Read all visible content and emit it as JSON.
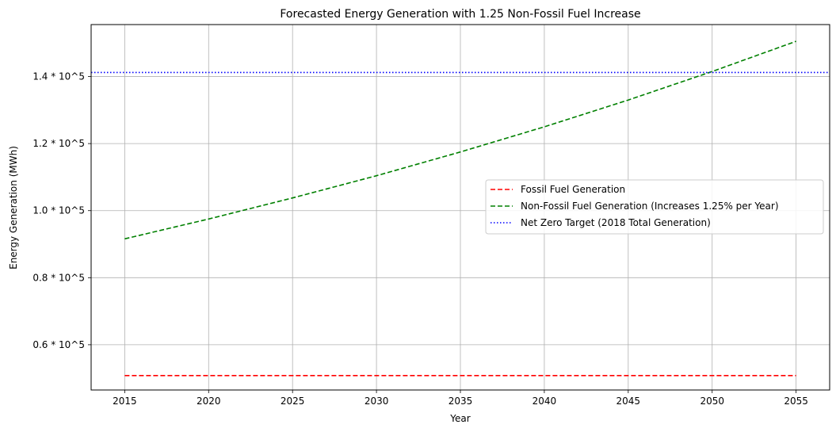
{
  "chart_data": {
    "type": "line",
    "title": "Forecasted Energy Generation with 1.25 Non-Fossil Fuel Increase",
    "xlabel": "Year",
    "ylabel": "Energy Generation (MWh)",
    "xlim": [
      2013,
      2057
    ],
    "ylim": [
      46500,
      155500
    ],
    "x_ticks": [
      2015,
      2020,
      2025,
      2030,
      2035,
      2040,
      2045,
      2050,
      2055
    ],
    "y_ticks": [
      {
        "value": 60000,
        "label": "0.6 * 10^5"
      },
      {
        "value": 80000,
        "label": "0.8 * 10^5"
      },
      {
        "value": 100000,
        "label": "1.0 * 10^5"
      },
      {
        "value": 120000,
        "label": "1.2 * 10^5"
      },
      {
        "value": 140000,
        "label": "1.4 * 10^5"
      }
    ],
    "grid": true,
    "legend_position": "center-right",
    "x": [
      2015,
      2020,
      2025,
      2030,
      2035,
      2040,
      2045,
      2050,
      2055
    ],
    "series": [
      {
        "name": "Fossil Fuel Generation",
        "color": "#ff0000",
        "style": "dashed",
        "values": [
          50800,
          50800,
          50800,
          50800,
          50800,
          50800,
          50800,
          50800,
          50800
        ]
      },
      {
        "name": "Non-Fossil Fuel Generation (Increases 1.25% per Year)",
        "color": "#008000",
        "style": "dashed",
        "values": [
          91600,
          97500,
          103800,
          110400,
          117500,
          125000,
          133000,
          141500,
          150500
        ]
      }
    ],
    "reference_lines": [
      {
        "name": "Net Zero Target (2018 Total Generation)",
        "color": "#0000ff",
        "style": "dotted",
        "value": 141200
      }
    ]
  }
}
